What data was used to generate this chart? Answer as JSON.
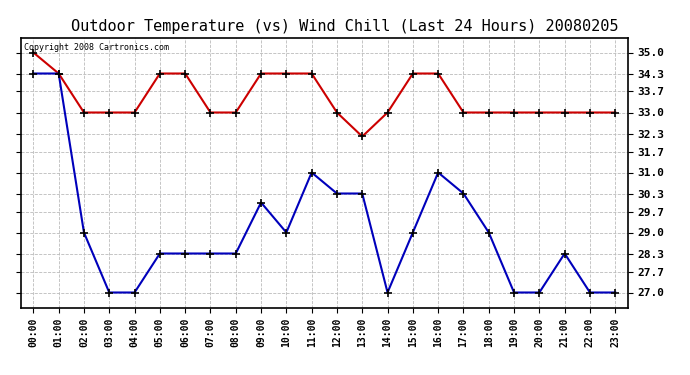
{
  "title": "Outdoor Temperature (vs) Wind Chill (Last 24 Hours) 20080205",
  "copyright": "Copyright 2008 Cartronics.com",
  "x_labels": [
    "00:00",
    "01:00",
    "02:00",
    "03:00",
    "04:00",
    "05:00",
    "06:00",
    "07:00",
    "08:00",
    "09:00",
    "10:00",
    "11:00",
    "12:00",
    "13:00",
    "14:00",
    "15:00",
    "16:00",
    "17:00",
    "18:00",
    "19:00",
    "20:00",
    "21:00",
    "22:00",
    "23:00"
  ],
  "temp": [
    34.3,
    34.3,
    29.0,
    27.0,
    27.0,
    28.3,
    28.3,
    28.3,
    28.3,
    30.0,
    29.0,
    31.0,
    30.3,
    30.3,
    27.0,
    29.0,
    31.0,
    30.3,
    29.0,
    27.0,
    27.0,
    28.3,
    27.0,
    27.0
  ],
  "wind": [
    35.0,
    34.3,
    33.0,
    33.0,
    33.0,
    34.3,
    34.3,
    33.0,
    33.0,
    34.3,
    34.3,
    34.3,
    33.0,
    32.2,
    33.0,
    34.3,
    34.3,
    33.0,
    33.0,
    33.0,
    33.0,
    33.0,
    33.0,
    33.0
  ],
  "ylim": [
    26.5,
    35.5
  ],
  "yticks": [
    27.0,
    27.7,
    28.3,
    29.0,
    29.7,
    30.3,
    31.0,
    31.7,
    32.3,
    33.0,
    33.7,
    34.3,
    35.0
  ],
  "temp_color": "#0000bb",
  "wind_color": "#cc0000",
  "bg_color": "#ffffff",
  "grid_color": "#bbbbbb",
  "title_fontsize": 11,
  "tick_fontsize": 7,
  "copyright_fontsize": 6
}
